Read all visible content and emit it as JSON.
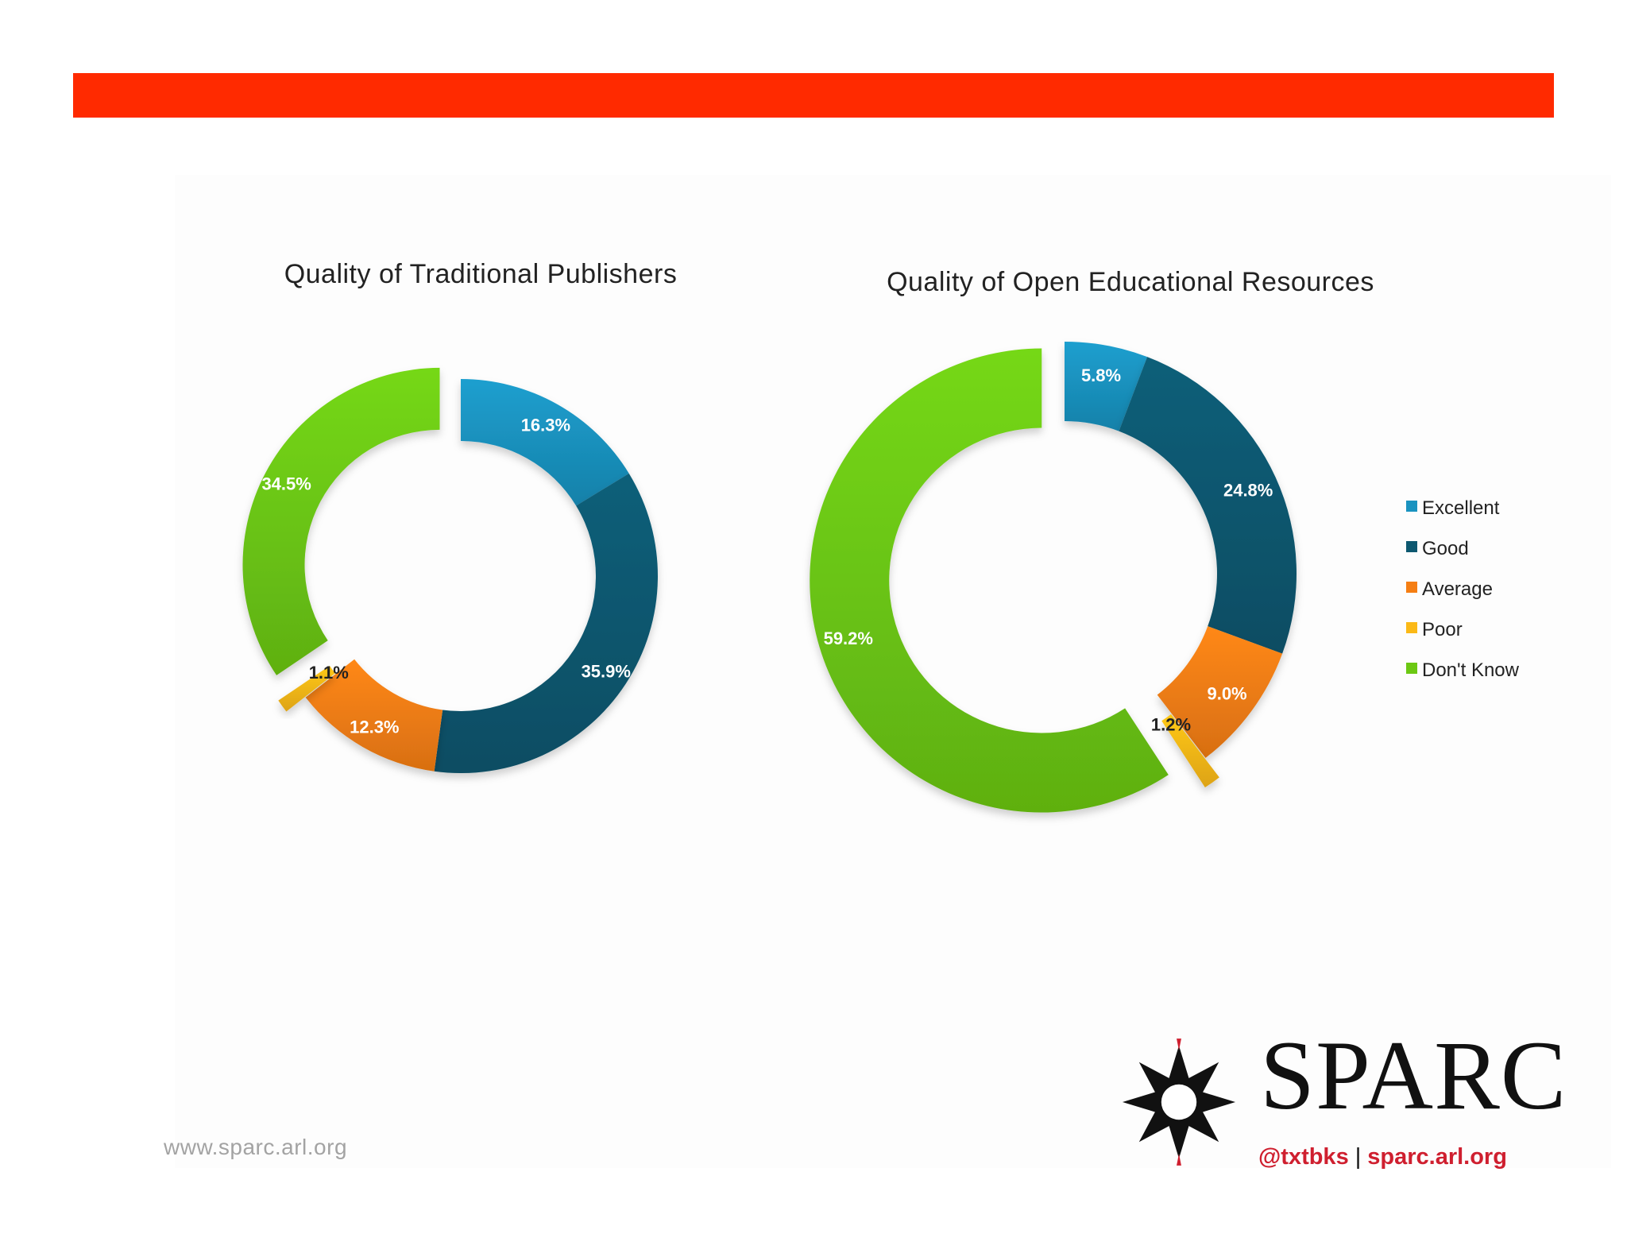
{
  "colors": {
    "header_bar": "#ff2a00",
    "footer_text": "#a3a3a3",
    "brand_red": "#cf1f2f"
  },
  "legend": [
    {
      "label": "Excellent",
      "color": "#1a93c0"
    },
    {
      "label": "Good",
      "color": "#0d5870"
    },
    {
      "label": "Average",
      "color": "#f57e13"
    },
    {
      "label": "Poor",
      "color": "#fbb917"
    },
    {
      "label": "Don't Know",
      "color": "#6cc813"
    }
  ],
  "chart_data": [
    {
      "type": "pie",
      "title": "Quality of Traditional Publishers",
      "categories": [
        "Excellent",
        "Good",
        "Average",
        "Poor",
        "Don't Know"
      ],
      "values": [
        16.3,
        35.9,
        12.3,
        1.1,
        34.5
      ],
      "labels": [
        "16.3%",
        "35.9%",
        "12.3%",
        "1.1%",
        "34.5%"
      ],
      "exploded": [
        "Poor",
        "Don't Know"
      ],
      "legend": "none"
    },
    {
      "type": "pie",
      "title": "Quality of Open Educational Resources",
      "categories": [
        "Excellent",
        "Good",
        "Average",
        "Poor",
        "Don't Know"
      ],
      "values": [
        5.8,
        24.8,
        9.0,
        1.2,
        59.2
      ],
      "labels": [
        "5.8%",
        "24.8%",
        "9.0%",
        "1.2%",
        "59.2%"
      ],
      "exploded": [
        "Poor",
        "Don't Know"
      ],
      "legend": "right"
    }
  ],
  "footer": {
    "url": "www.sparc.arl.org"
  },
  "logo": {
    "wordmark": "SPARC",
    "handle": "@txtbks",
    "separator": "|",
    "site": "sparc.arl.org"
  }
}
